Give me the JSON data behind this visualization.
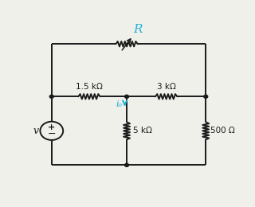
{
  "bg_color": "#f0f0eb",
  "wire_color": "#1a1a1a",
  "component_color": "#1a1a1a",
  "cyan_color": "#1eb0d8",
  "label_R": "R",
  "label_15k": "1.5 kΩ",
  "label_3k": "3 kΩ",
  "label_5k": "5 kΩ",
  "label_500": "500 Ω",
  "label_i0": "i₀",
  "label_v": "v",
  "xl": 0.1,
  "xm": 0.48,
  "xr": 0.88,
  "yt": 0.88,
  "ym": 0.55,
  "yb": 0.12,
  "lw": 1.4
}
